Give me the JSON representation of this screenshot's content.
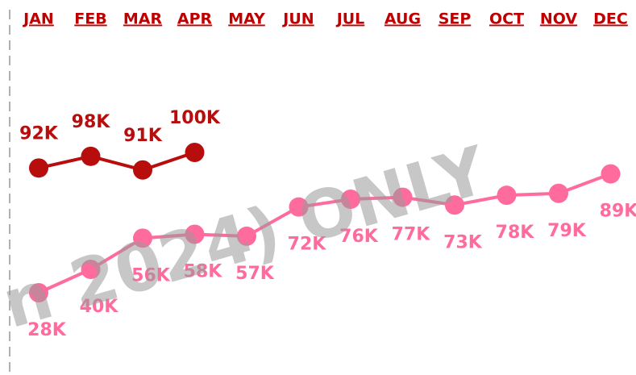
{
  "chart_data": {
    "type": "line",
    "categories": [
      "JAN",
      "FEB",
      "MAR",
      "APR",
      "MAY",
      "JUN",
      "JUL",
      "AUG",
      "SEP",
      "OCT",
      "NOV",
      "DEC"
    ],
    "series": [
      {
        "color": "#b80d0d",
        "values": [
          92,
          98,
          91,
          100,
          null,
          null,
          null,
          null,
          null,
          null,
          null,
          null
        ],
        "value_labels": [
          "92K",
          "98K",
          "91K",
          "100K",
          null,
          null,
          null,
          null,
          null,
          null,
          null,
          null
        ]
      },
      {
        "color": "#ff6b9d",
        "values": [
          28,
          40,
          56,
          58,
          57,
          72,
          76,
          77,
          73,
          78,
          79,
          89
        ],
        "value_labels": [
          "28K",
          "40K",
          "56K",
          "58K",
          "57K",
          "72K",
          "76K",
          "77K",
          "73K",
          "78K",
          "79K",
          "89K"
        ]
      }
    ],
    "watermark": "n 2024) ONLY"
  }
}
